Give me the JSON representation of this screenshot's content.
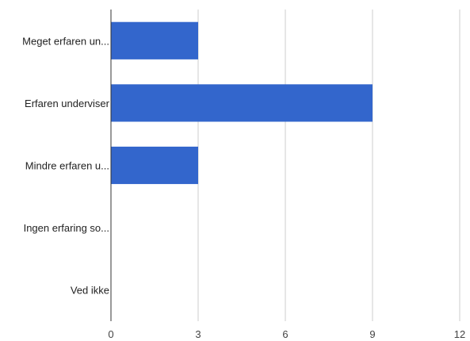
{
  "chart_data": {
    "type": "bar",
    "orientation": "horizontal",
    "title": "",
    "xlabel": "",
    "ylabel": "",
    "categories": [
      "Meget erfaren un...",
      "Erfaren underviser",
      "Mindre erfaren u...",
      "Ingen erfaring so...",
      "Ved ikke"
    ],
    "values": [
      3,
      9,
      3,
      0,
      0
    ],
    "xlim": [
      0,
      12
    ],
    "xticks": [
      0,
      3,
      6,
      9,
      12
    ],
    "grid": true,
    "legend": "none",
    "colors": {
      "bar": "#3366cc",
      "grid": "#cccccc",
      "axis": "#333333"
    }
  }
}
